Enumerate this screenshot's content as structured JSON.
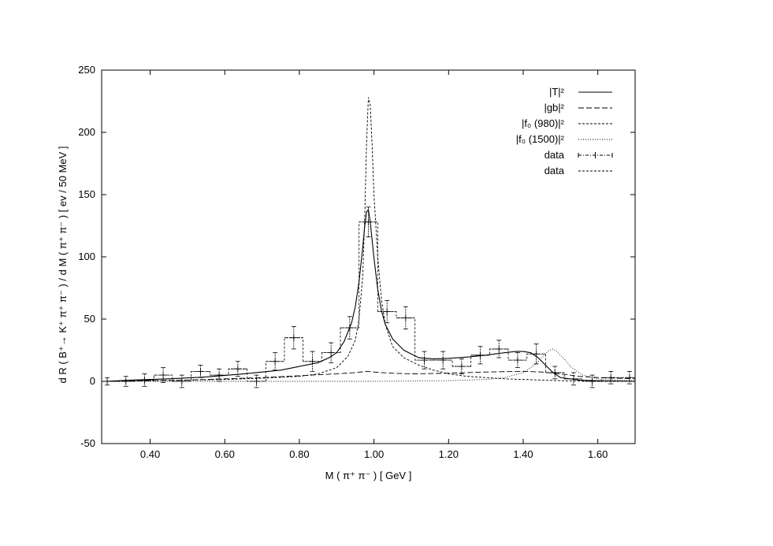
{
  "chart_data": {
    "type": "line",
    "xlabel": "M ( π⁺ π⁻ ) [ GeV ]",
    "ylabel": "d R ( B⁺→ K⁺ π⁺ π⁻ ) / d M ( π⁺ π⁻ )  [ ev / 50 MeV ]",
    "xlim": [
      0.27,
      1.7
    ],
    "ylim": [
      -50,
      250
    ],
    "x_ticks": [
      0.4,
      0.6,
      0.8,
      1.0,
      1.2,
      1.4,
      1.6
    ],
    "x_tick_labels": [
      "0.40",
      "0.60",
      "0.80",
      "1.00",
      "1.20",
      "1.40",
      "1.60"
    ],
    "y_ticks": [
      -50,
      0,
      50,
      100,
      150,
      200,
      250
    ],
    "y_tick_labels": [
      "-50",
      "0",
      "50",
      "100",
      "150",
      "200",
      "250"
    ],
    "grid": false,
    "legend_position": "top-right",
    "legend": [
      "|T|²",
      "|gb|²",
      "|f₀ (980)|²",
      "|f₀ (1500)|²",
      "data",
      "data"
    ],
    "series": [
      {
        "name": "|T|²",
        "style": "solid",
        "x": [
          0.28,
          0.35,
          0.45,
          0.55,
          0.65,
          0.75,
          0.8,
          0.85,
          0.88,
          0.9,
          0.92,
          0.94,
          0.95,
          0.96,
          0.97,
          0.975,
          0.98,
          0.985,
          0.99,
          1.0,
          1.01,
          1.02,
          1.03,
          1.05,
          1.08,
          1.12,
          1.16,
          1.2,
          1.25,
          1.3,
          1.35,
          1.38,
          1.4,
          1.42,
          1.44,
          1.46,
          1.48,
          1.5,
          1.55,
          1.6,
          1.7
        ],
        "y": [
          0,
          1,
          2,
          3.5,
          6,
          9,
          12,
          15,
          19,
          23,
          32,
          47,
          60,
          80,
          108,
          124,
          136,
          138,
          128,
          99,
          74,
          57,
          46,
          34,
          25,
          19,
          18,
          18.5,
          19.5,
          21,
          23,
          24,
          24,
          23,
          19,
          13,
          7,
          3,
          1,
          0.5,
          0
        ]
      },
      {
        "name": "|gb|²",
        "style": "dashed",
        "x": [
          0.28,
          0.4,
          0.5,
          0.6,
          0.7,
          0.8,
          0.9,
          0.95,
          0.98,
          1.0,
          1.02,
          1.05,
          1.1,
          1.2,
          1.3,
          1.4,
          1.45,
          1.5,
          1.55,
          1.6,
          1.7
        ],
        "y": [
          0,
          0.5,
          1,
          2,
          3,
          4.5,
          6,
          7,
          8,
          7.5,
          7,
          6.5,
          6,
          6.5,
          7.5,
          8,
          7.5,
          6,
          4,
          3,
          2
        ]
      },
      {
        "name": "|f₀ (980)|²",
        "style": "short-dash",
        "x": [
          0.28,
          0.4,
          0.5,
          0.6,
          0.7,
          0.8,
          0.85,
          0.9,
          0.93,
          0.95,
          0.96,
          0.97,
          0.975,
          0.98,
          0.985,
          0.99,
          0.995,
          1.0,
          1.01,
          1.02,
          1.03,
          1.05,
          1.08,
          1.12,
          1.16,
          1.2,
          1.25,
          1.3,
          1.35,
          1.4,
          1.45,
          1.5,
          1.6,
          1.7
        ],
        "y": [
          0,
          0.5,
          1,
          1.5,
          2.5,
          4,
          6,
          11,
          20,
          33,
          50,
          85,
          130,
          190,
          228,
          222,
          190,
          150,
          100,
          66,
          46,
          28,
          19,
          13,
          9,
          6,
          4,
          3,
          2,
          1.5,
          1,
          0.5,
          0,
          0
        ]
      },
      {
        "name": "|f₀ (1500)|²",
        "style": "dotted",
        "x": [
          0.28,
          0.6,
          1.0,
          1.2,
          1.3,
          1.35,
          1.4,
          1.43,
          1.45,
          1.47,
          1.48,
          1.49,
          1.51,
          1.53,
          1.56,
          1.6,
          1.65,
          1.7
        ],
        "y": [
          0,
          0,
          0,
          0.5,
          1.5,
          3,
          7,
          13,
          19,
          25,
          26,
          24,
          18,
          11,
          5,
          2,
          1,
          0.5
        ]
      }
    ],
    "data_points": {
      "name": "data",
      "x": [
        0.285,
        0.335,
        0.385,
        0.435,
        0.485,
        0.535,
        0.585,
        0.635,
        0.685,
        0.735,
        0.785,
        0.835,
        0.885,
        0.935,
        0.985,
        1.035,
        1.085,
        1.135,
        1.185,
        1.235,
        1.285,
        1.335,
        1.385,
        1.435,
        1.485,
        1.535,
        1.585,
        1.635,
        1.685
      ],
      "y": [
        0,
        0,
        1,
        5,
        0,
        8,
        5,
        10,
        0,
        16,
        35,
        16,
        23,
        43,
        128,
        56,
        51,
        17,
        17,
        12,
        21,
        26,
        17,
        22,
        7,
        2,
        0,
        3,
        3
      ],
      "yerr": [
        3,
        4,
        5,
        6,
        5,
        5,
        5,
        6,
        5,
        7,
        9,
        8,
        8,
        9,
        12,
        9,
        9,
        7,
        7,
        6,
        7,
        7,
        6,
        8,
        5,
        5,
        5,
        5,
        5
      ],
      "xerr": 0.025
    },
    "histogram": {
      "name": "data",
      "edges": [
        0.26,
        0.31,
        0.36,
        0.41,
        0.46,
        0.51,
        0.56,
        0.61,
        0.66,
        0.71,
        0.76,
        0.81,
        0.86,
        0.91,
        0.96,
        1.01,
        1.06,
        1.11,
        1.16,
        1.21,
        1.26,
        1.31,
        1.36,
        1.41,
        1.46,
        1.51,
        1.56,
        1.61,
        1.66,
        1.71
      ],
      "values": [
        0,
        0,
        1,
        5,
        0,
        8,
        5,
        10,
        0,
        16,
        35,
        16,
        23,
        43,
        128,
        56,
        51,
        17,
        17,
        12,
        21,
        26,
        17,
        22,
        7,
        2,
        0,
        3,
        3
      ]
    }
  }
}
